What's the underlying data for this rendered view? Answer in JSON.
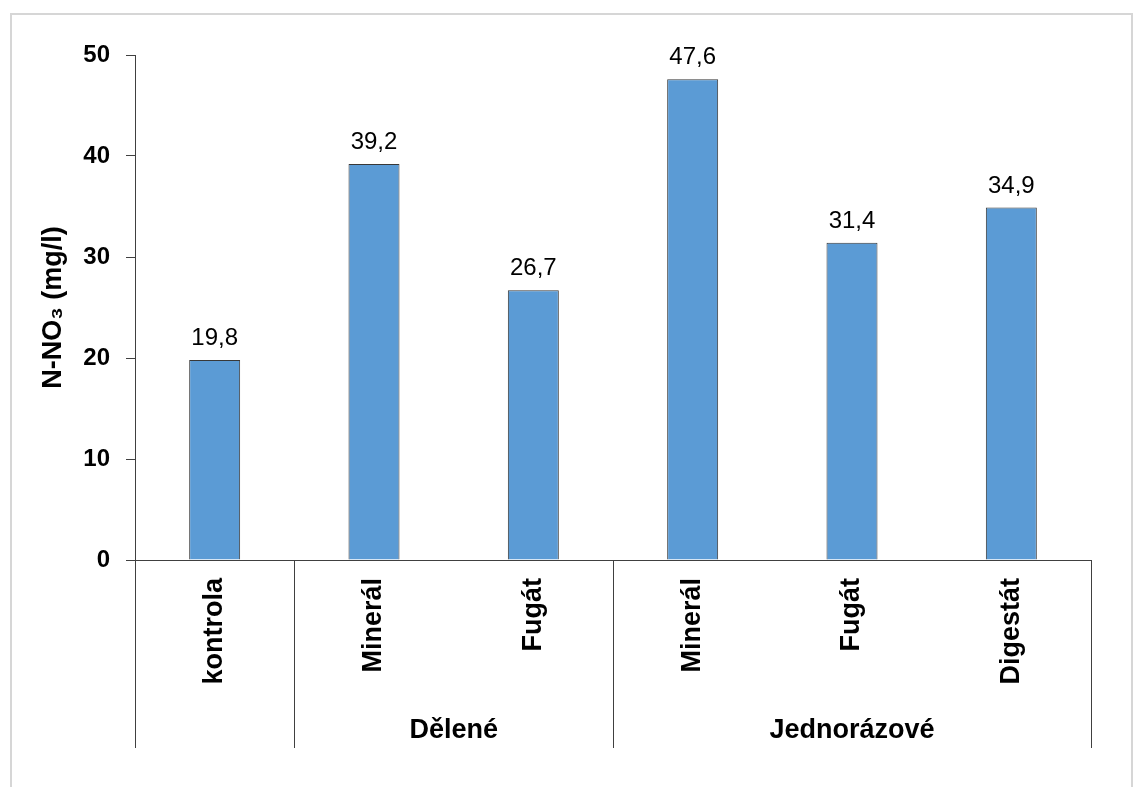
{
  "chart_data": {
    "type": "bar",
    "ylabel": "N-NO₃ (mg/l)",
    "categories": [
      "kontrola",
      "Minerál",
      "Fugát",
      "Minerál",
      "Fugát",
      "Digestát"
    ],
    "values": [
      19.8,
      39.2,
      26.7,
      47.6,
      31.4,
      34.9
    ],
    "value_labels": [
      "19,8",
      "39,2",
      "26,7",
      "47,6",
      "31,4",
      "34,9"
    ],
    "color": "#5b9bd5",
    "ylim": [
      0,
      50
    ],
    "yticks": [
      0,
      10,
      20,
      30,
      40,
      50
    ],
    "annotations": [
      "Dělené",
      "Jednorázové"
    ]
  }
}
